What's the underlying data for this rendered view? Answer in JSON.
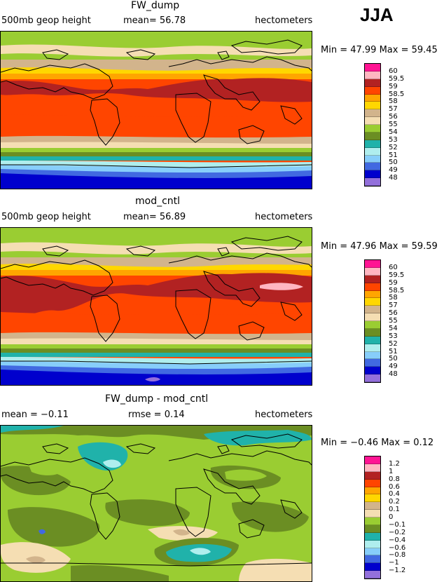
{
  "season": "JJA",
  "chart_data": [
    {
      "type": "heatmap",
      "title": "FW_dump",
      "variable": "500mb geop height",
      "stat1": "mean=  56.78",
      "units": "hectometers",
      "minmax": "Min =  47.99 Max =  59.45",
      "levels": [
        "60",
        "59.5",
        "59",
        "58.5",
        "58",
        "57",
        "56",
        "55",
        "54",
        "53",
        "52",
        "51",
        "50",
        "49",
        "48"
      ],
      "colors": [
        "#ff1493",
        "#ffb6c1",
        "#b22222",
        "#ff4500",
        "#ffa500",
        "#ffd700",
        "#d2b48c",
        "#f5deb3",
        "#9acd32",
        "#6b8e23",
        "#20b2aa",
        "#afeeee",
        "#87cefa",
        "#4169e1",
        "#0000cd",
        "#9370db"
      ]
    },
    {
      "type": "heatmap",
      "title": "mod_cntl",
      "variable": "500mb geop height",
      "stat1": "mean=  56.89",
      "units": "hectometers",
      "minmax": "Min =  47.96 Max =  59.59",
      "levels": [
        "60",
        "59.5",
        "59",
        "58.5",
        "58",
        "57",
        "56",
        "55",
        "54",
        "53",
        "52",
        "51",
        "50",
        "49",
        "48"
      ],
      "colors": [
        "#ff1493",
        "#ffb6c1",
        "#b22222",
        "#ff4500",
        "#ffa500",
        "#ffd700",
        "#d2b48c",
        "#f5deb3",
        "#9acd32",
        "#6b8e23",
        "#20b2aa",
        "#afeeee",
        "#87cefa",
        "#4169e1",
        "#0000cd",
        "#9370db"
      ]
    },
    {
      "type": "heatmap",
      "title": "FW_dump - mod_cntl",
      "stat1": "mean =  −0.11",
      "stat2": "rmse =   0.14",
      "units": "hectometers",
      "minmax": "Min =  −0.46 Max =   0.12",
      "levels": [
        "1.2",
        "1",
        "0.8",
        "0.6",
        "0.4",
        "0.2",
        "0.1",
        "0",
        "−0.1",
        "−0.2",
        "−0.4",
        "−0.6",
        "−0.8",
        "−1",
        "−1.2"
      ],
      "colors": [
        "#ff1493",
        "#ffb6c1",
        "#b22222",
        "#ff4500",
        "#ffa500",
        "#ffd700",
        "#d2b48c",
        "#f5deb3",
        "#9acd32",
        "#6b8e23",
        "#20b2aa",
        "#afeeee",
        "#87cefa",
        "#4169e1",
        "#0000cd",
        "#9370db"
      ]
    }
  ]
}
